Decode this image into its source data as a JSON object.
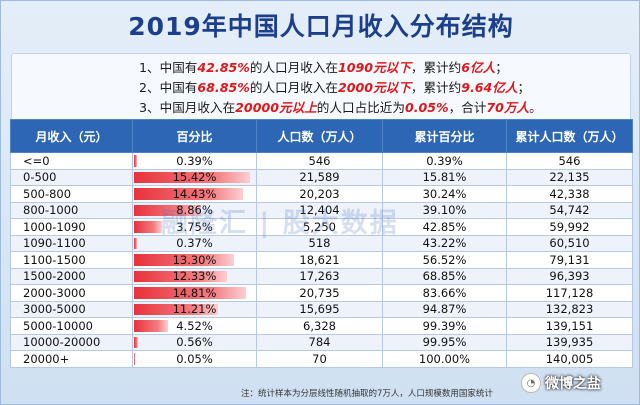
{
  "title": "2019年中国人口月收入分布结构",
  "notes": [
    {
      "parts": [
        {
          "t": "1、中国有",
          "h": false
        },
        {
          "t": "42.85%",
          "h": true
        },
        {
          "t": "的人口月收入在",
          "h": false
        },
        {
          "t": "1090元以下",
          "h": true
        },
        {
          "t": "，累计约",
          "h": false
        },
        {
          "t": "6亿人",
          "h": true
        },
        {
          "t": "；",
          "h": false
        }
      ]
    },
    {
      "parts": [
        {
          "t": "2、中国有",
          "h": false
        },
        {
          "t": "68.85%",
          "h": true
        },
        {
          "t": "的人口月收入在",
          "h": false
        },
        {
          "t": "2000元以下",
          "h": true
        },
        {
          "t": "，累计约",
          "h": false
        },
        {
          "t": "9.64亿人",
          "h": true
        },
        {
          "t": "；",
          "h": false
        }
      ]
    },
    {
      "parts": [
        {
          "t": "3、中国月收入在",
          "h": false
        },
        {
          "t": "20000元以上",
          "h": true
        },
        {
          "t": "的人口占比近为",
          "h": false
        },
        {
          "t": "0.05%",
          "h": true
        },
        {
          "t": "，合计",
          "h": false
        },
        {
          "t": "70万人",
          "h": true
        },
        {
          "t": "。",
          "h": false
        }
      ]
    }
  ],
  "headers": [
    "月收入（元）",
    "百分比",
    "人口数（万人）",
    "累计百分比",
    "累计人口数（万人）"
  ],
  "rows": [
    {
      "income": "<=0",
      "pct": "0.39%",
      "pct_value": 0.39,
      "pop": "546",
      "cum_pct": "0.39%",
      "cum_pop": "546"
    },
    {
      "income": "0-500",
      "pct": "15.42%",
      "pct_value": 15.42,
      "pop": "21,589",
      "cum_pct": "15.81%",
      "cum_pop": "22,135"
    },
    {
      "income": "500-800",
      "pct": "14.43%",
      "pct_value": 14.43,
      "pop": "20,203",
      "cum_pct": "30.24%",
      "cum_pop": "42,338"
    },
    {
      "income": "800-1000",
      "pct": "8.86%",
      "pct_value": 8.86,
      "pop": "12,404",
      "cum_pct": "39.10%",
      "cum_pop": "54,742"
    },
    {
      "income": "1000-1090",
      "pct": "3.75%",
      "pct_value": 3.75,
      "pop": "5,250",
      "cum_pct": "42.85%",
      "cum_pop": "59,992"
    },
    {
      "income": "1090-1100",
      "pct": "0.37%",
      "pct_value": 0.37,
      "pop": "518",
      "cum_pct": "43.22%",
      "cum_pop": "60,510"
    },
    {
      "income": "1100-1500",
      "pct": "13.30%",
      "pct_value": 13.3,
      "pop": "18,621",
      "cum_pct": "56.52%",
      "cum_pop": "79,131"
    },
    {
      "income": "1500-2000",
      "pct": "12.33%",
      "pct_value": 12.33,
      "pop": "17,263",
      "cum_pct": "68.85%",
      "cum_pop": "96,393"
    },
    {
      "income": "2000-3000",
      "pct": "14.81%",
      "pct_value": 14.81,
      "pop": "20,735",
      "cum_pct": "83.66%",
      "cum_pop": "117,128"
    },
    {
      "income": "3000-5000",
      "pct": "11.21%",
      "pct_value": 11.21,
      "pop": "15,695",
      "cum_pct": "94.87%",
      "cum_pop": "132,823"
    },
    {
      "income": "5000-10000",
      "pct": "4.52%",
      "pct_value": 4.52,
      "pop": "6,328",
      "cum_pct": "99.39%",
      "cum_pop": "139,151"
    },
    {
      "income": "10000-20000",
      "pct": "0.56%",
      "pct_value": 0.56,
      "pop": "784",
      "cum_pct": "99.95%",
      "cum_pop": "139,935"
    },
    {
      "income": "20000+",
      "pct": "0.05%",
      "pct_value": 0.05,
      "pop": "70",
      "cum_pct": "100.00%",
      "cum_pop": "140,005"
    }
  ],
  "footnote": "注：统计样本为分层线性随机抽取的7万人，人口规模数用国家统计",
  "watermark": "融隆汇 | 股大数据",
  "badge": {
    "icon": "wechat-icon",
    "text": "微博之盐"
  },
  "colors": {
    "header_bg": "#2c66b4",
    "title": "#1c3f8c",
    "highlight": "#e0171b",
    "bar": "#e8323c"
  }
}
